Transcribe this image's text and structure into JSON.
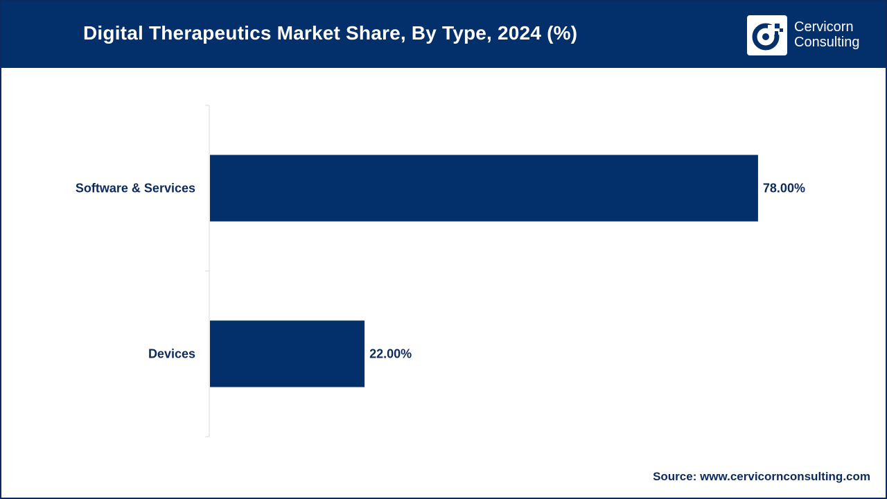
{
  "header": {
    "title": "Digital Therapeutics Market Share, By Type, 2024 (%)",
    "logo": {
      "line1": "Cervicorn",
      "line2": "Consulting",
      "icon": "cervicorn-logo-icon"
    }
  },
  "footer": {
    "source": "Source: www.cervicornconsulting.com"
  },
  "colors": {
    "header_bg": "#03306b",
    "bar": "#03306b",
    "text": "#0d2a5e"
  },
  "chart_data": {
    "type": "bar",
    "orientation": "horizontal",
    "categories": [
      "Software & Services",
      "Devices"
    ],
    "values": [
      78.0,
      22.0
    ],
    "value_labels": [
      "78.00%",
      "22.00%"
    ],
    "xlim": [
      0,
      100
    ],
    "grid": false,
    "legend": "none"
  }
}
